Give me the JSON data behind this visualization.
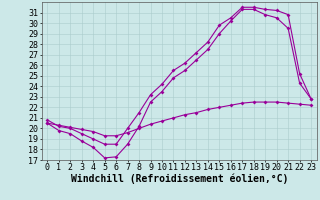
{
  "xlabel": "Windchill (Refroidissement éolien,°C)",
  "bg_color": "#cce8e8",
  "line_color": "#990099",
  "xlim": [
    -0.5,
    23.5
  ],
  "ylim": [
    17,
    32
  ],
  "xticks": [
    0,
    1,
    2,
    3,
    4,
    5,
    6,
    7,
    8,
    9,
    10,
    11,
    12,
    13,
    14,
    15,
    16,
    17,
    18,
    19,
    20,
    21,
    22,
    23
  ],
  "yticks": [
    17,
    18,
    19,
    20,
    21,
    22,
    23,
    24,
    25,
    26,
    27,
    28,
    29,
    30,
    31
  ],
  "line1_x": [
    0,
    1,
    2,
    3,
    4,
    5,
    6,
    7,
    8,
    9,
    10,
    11,
    12,
    13,
    14,
    15,
    16,
    17,
    18,
    19,
    20,
    21,
    22,
    23
  ],
  "line1_y": [
    20.5,
    19.8,
    19.5,
    18.8,
    18.2,
    17.2,
    17.3,
    18.5,
    20.2,
    22.5,
    23.5,
    24.8,
    25.5,
    26.5,
    27.5,
    29.0,
    30.2,
    31.3,
    31.3,
    30.8,
    30.5,
    29.5,
    24.3,
    22.8
  ],
  "line2_x": [
    0,
    1,
    2,
    3,
    4,
    5,
    6,
    7,
    8,
    9,
    10,
    11,
    12,
    13,
    14,
    15,
    16,
    17,
    18,
    19,
    20,
    21,
    22,
    23
  ],
  "line2_y": [
    20.8,
    20.2,
    20.0,
    19.5,
    19.0,
    18.5,
    18.5,
    20.0,
    21.5,
    23.2,
    24.2,
    25.5,
    26.2,
    27.2,
    28.2,
    29.8,
    30.5,
    31.5,
    31.5,
    31.3,
    31.2,
    30.8,
    25.2,
    22.8
  ],
  "line3_x": [
    0,
    1,
    2,
    3,
    4,
    5,
    6,
    7,
    8,
    9,
    10,
    11,
    12,
    13,
    14,
    15,
    16,
    17,
    18,
    19,
    20,
    21,
    22,
    23
  ],
  "line3_y": [
    20.5,
    20.3,
    20.1,
    19.9,
    19.7,
    19.3,
    19.3,
    19.6,
    20.0,
    20.4,
    20.7,
    21.0,
    21.3,
    21.5,
    21.8,
    22.0,
    22.2,
    22.4,
    22.5,
    22.5,
    22.5,
    22.4,
    22.3,
    22.2
  ],
  "tick_fontsize": 6,
  "xlabel_fontsize": 7,
  "grid_color": "#aacccc",
  "grid_linewidth": 0.4
}
